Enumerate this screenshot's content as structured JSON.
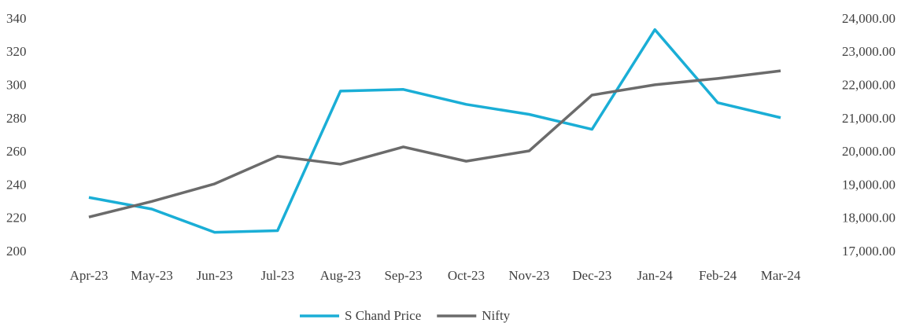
{
  "chart_data": {
    "type": "line",
    "categories": [
      "Apr-23",
      "May-23",
      "Jun-23",
      "Jul-23",
      "Aug-23",
      "Sep-23",
      "Oct-23",
      "Nov-23",
      "Dec-23",
      "Jan-24",
      "Feb-24",
      "Mar-24"
    ],
    "series": [
      {
        "name": "S Chand Price",
        "color": "#1aaed6",
        "values": [
          233,
          226,
          212,
          213,
          297,
          298,
          289,
          283,
          274,
          334,
          290,
          281
        ]
      },
      {
        "name": "Nifty",
        "color": "#6b6b6b",
        "axis": "y2",
        "values": [
          18060,
          18530,
          19060,
          19890,
          19650,
          20170,
          19740,
          20050,
          21730,
          22040,
          22230,
          22460
        ]
      }
    ],
    "ylim": [
      200,
      340
    ],
    "yticks": [
      200,
      220,
      240,
      260,
      280,
      300,
      320,
      340
    ],
    "y2lim": [
      17000,
      24000
    ],
    "y2ticks": [
      {
        "value": 17000,
        "label": "17,000.00"
      },
      {
        "value": 18000,
        "label": "18,000.00"
      },
      {
        "value": 19000,
        "label": "19,000.00"
      },
      {
        "value": 20000,
        "label": "20,000.00"
      },
      {
        "value": 21000,
        "label": "21,000.00"
      },
      {
        "value": 22000,
        "label": "22,000.00"
      },
      {
        "value": 23000,
        "label": "23,000.00"
      },
      {
        "value": 24000,
        "label": "24,000.00"
      }
    ],
    "grid": false,
    "legend": "bottom"
  }
}
